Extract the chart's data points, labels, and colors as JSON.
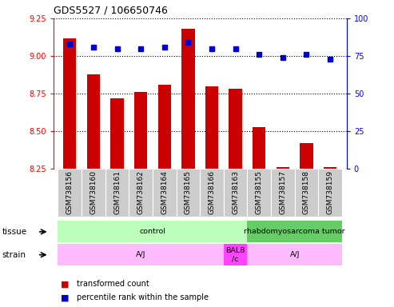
{
  "title": "GDS5527 / 106650746",
  "samples": [
    "GSM738156",
    "GSM738160",
    "GSM738161",
    "GSM738162",
    "GSM738164",
    "GSM738165",
    "GSM738166",
    "GSM738163",
    "GSM738155",
    "GSM738157",
    "GSM738158",
    "GSM738159"
  ],
  "bar_values": [
    9.12,
    8.88,
    8.72,
    8.76,
    8.81,
    9.18,
    8.8,
    8.78,
    8.53,
    8.26,
    8.42,
    8.26
  ],
  "percentile_values": [
    83,
    81,
    80,
    80,
    81,
    84,
    80,
    80,
    76,
    74,
    76,
    73
  ],
  "ylim_left": [
    8.25,
    9.25
  ],
  "ylim_right": [
    0,
    100
  ],
  "yticks_left": [
    8.25,
    8.5,
    8.75,
    9.0,
    9.25
  ],
  "yticks_right": [
    0,
    25,
    50,
    75,
    100
  ],
  "bar_color": "#cc0000",
  "dot_color": "#0000cc",
  "bar_bottom": 8.25,
  "tissue_data": [
    {
      "label": "control",
      "start": 0,
      "end": 8,
      "color": "#bbffbb"
    },
    {
      "label": "rhabdomyosarcoma tumor",
      "start": 8,
      "end": 12,
      "color": "#66cc66"
    }
  ],
  "strain_data": [
    {
      "label": "A/J",
      "start": 0,
      "end": 7,
      "color": "#ffbbff"
    },
    {
      "label": "BALB\n/c",
      "start": 7,
      "end": 8,
      "color": "#ff44ff"
    },
    {
      "label": "A/J",
      "start": 8,
      "end": 12,
      "color": "#ffbbff"
    }
  ],
  "legend_items": [
    {
      "color": "#cc0000",
      "label": "transformed count"
    },
    {
      "color": "#0000cc",
      "label": "percentile rank within the sample"
    }
  ],
  "xticklabel_bg": "#cccccc",
  "xticklabel_border": "#ffffff"
}
